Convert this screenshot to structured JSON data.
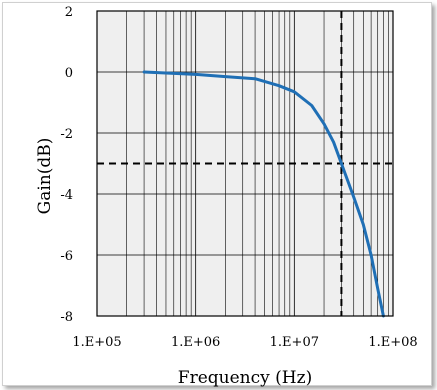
{
  "chart_data": {
    "type": "line",
    "title": "",
    "xlabel": "Frequency (Hz)",
    "ylabel": "Gain(dB)",
    "x_scale": "log",
    "xlim": [
      100000,
      100000000
    ],
    "ylim": [
      -8,
      2
    ],
    "x_ticks": [
      100000,
      1000000,
      10000000,
      100000000
    ],
    "x_tick_labels": [
      "1.E+05",
      "1.E+06",
      "1.E+07",
      "1.E+08"
    ],
    "y_ticks": [
      2,
      0,
      -2,
      -4,
      -6,
      -8
    ],
    "y_tick_labels": [
      "2",
      "0",
      "-2",
      "-4",
      "-6",
      "-8"
    ],
    "grid": true,
    "plot_background": "#efefef",
    "series": [
      {
        "color": "#1f6fb5",
        "x": [
          300000,
          1000000,
          2000000,
          4000000,
          7000000,
          10000000,
          15000000,
          20000000,
          25000000,
          30000000,
          40000000,
          50000000,
          60000000,
          70000000,
          80000000
        ],
        "y": [
          0.0,
          -0.08,
          -0.15,
          -0.22,
          -0.45,
          -0.65,
          -1.1,
          -1.7,
          -2.3,
          -3.0,
          -4.1,
          -5.0,
          -6.0,
          -7.1,
          -8.0
        ]
      }
    ],
    "reference_lines": [
      {
        "orientation": "horizontal",
        "value": -3,
        "style": "dashed",
        "color": "#000000"
      },
      {
        "orientation": "vertical",
        "value": 30000000,
        "style": "dashed",
        "color": "#000000"
      }
    ]
  }
}
